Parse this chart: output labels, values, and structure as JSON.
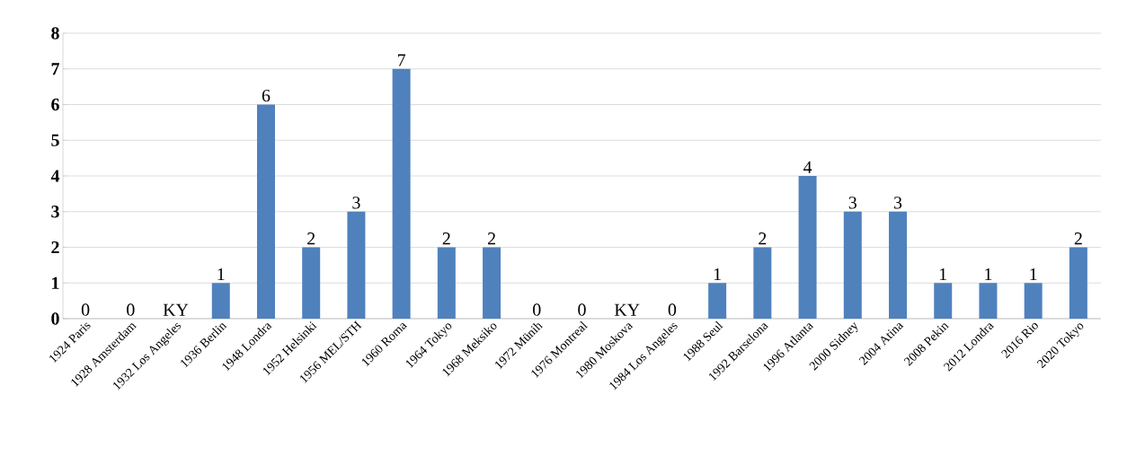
{
  "chart_data": {
    "type": "bar",
    "categories": [
      "1924 Paris",
      "1928 Amsterdam",
      "1932 Los Angeles",
      "1936 Berlin",
      "1948 Londra",
      "1952 Helsinki",
      "1956 MEL/STH",
      "1960 Roma",
      "1964 Tokyo",
      "1968 Meksiko",
      "1972 Münih",
      "1976 Montreal",
      "1980 Moskova",
      "1984 Los Angeles",
      "1988 Seul",
      "1992 Barselona",
      "1996 Atlanta",
      "2000 Sidney",
      "2004 Atina",
      "2008 Pekin",
      "2012 Londra",
      "2016 Rio",
      "2020 Tokyo"
    ],
    "values": [
      0,
      0,
      null,
      1,
      6,
      2,
      3,
      7,
      2,
      2,
      0,
      0,
      null,
      0,
      1,
      2,
      4,
      3,
      3,
      1,
      1,
      1,
      2
    ],
    "value_labels": [
      "0",
      "0",
      "KY",
      "1",
      "6",
      "2",
      "3",
      "7",
      "2",
      "2",
      "0",
      "0",
      "KY",
      "0",
      "1",
      "2",
      "4",
      "3",
      "3",
      "1",
      "1",
      "1",
      "2"
    ],
    "color": "#4f81bd",
    "ylim": [
      0,
      8
    ],
    "yticks": [
      0,
      1,
      2,
      3,
      4,
      5,
      6,
      7,
      8
    ],
    "grid": "y"
  }
}
